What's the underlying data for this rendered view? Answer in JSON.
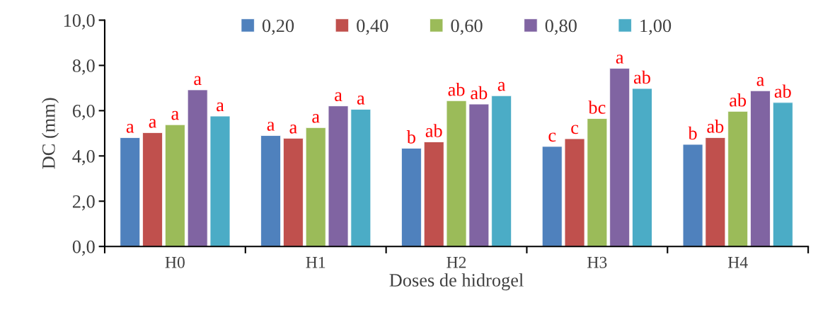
{
  "chart_data": {
    "type": "bar",
    "xlabel": "Doses de hidrogel",
    "ylabel": "DC (mm)",
    "categories": [
      "H0",
      "H1",
      "H2",
      "H3",
      "H4"
    ],
    "series": [
      {
        "name": "0,20",
        "color": "#4f81bd",
        "values": [
          4.81,
          4.9,
          4.34,
          4.42,
          4.51
        ],
        "value_labels": [
          "a",
          "a",
          "b",
          "c",
          "b"
        ]
      },
      {
        "name": "0,40",
        "color": "#c0504d",
        "values": [
          5.03,
          4.78,
          4.62,
          4.76,
          4.81
        ],
        "value_labels": [
          "a",
          "a",
          "ab",
          "c",
          "ab"
        ]
      },
      {
        "name": "0,60",
        "color": "#9bbb59",
        "values": [
          5.38,
          5.25,
          6.44,
          5.65,
          5.97
        ],
        "value_labels": [
          "a",
          "a",
          "ab",
          "bc",
          "ab"
        ]
      },
      {
        "name": "0,80",
        "color": "#8064a2",
        "values": [
          6.92,
          6.21,
          6.29,
          7.87,
          6.88
        ],
        "value_labels": [
          "a",
          "a",
          "ab",
          "a",
          "a"
        ]
      },
      {
        "name": "1,00",
        "color": "#4bacc6",
        "values": [
          5.76,
          6.06,
          6.66,
          6.98,
          6.36
        ],
        "value_labels": [
          "a",
          "a",
          "a",
          "ab",
          "ab"
        ]
      }
    ],
    "ylim": [
      0,
      10
    ],
    "yticks": [
      {
        "value": 0,
        "label": "0,0"
      },
      {
        "value": 2,
        "label": "2,0"
      },
      {
        "value": 4,
        "label": "4,0"
      },
      {
        "value": 6,
        "label": "6,0"
      },
      {
        "value": 8,
        "label": "8,0"
      },
      {
        "value": 10,
        "label": "10,0"
      }
    ],
    "legend": "top",
    "grid": false
  }
}
